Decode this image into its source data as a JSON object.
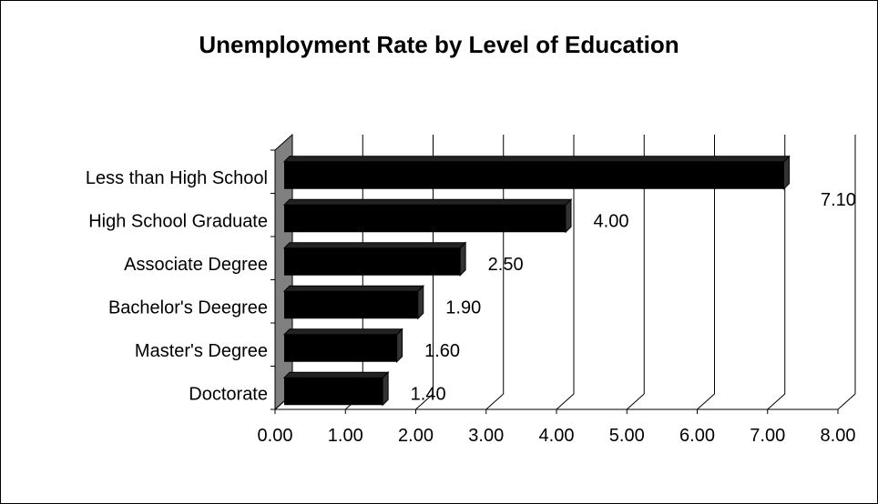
{
  "chart_data": {
    "type": "bar",
    "orientation": "horizontal",
    "title": "Unemployment Rate by Level of Education",
    "xlabel": "",
    "ylabel": "",
    "categories": [
      "Less than High School",
      "High School Graduate",
      "Associate Degree",
      "Bachelor's Deegree",
      "Master's Degree",
      "Doctorate"
    ],
    "values": [
      7.1,
      4.0,
      2.5,
      1.9,
      1.6,
      1.4
    ],
    "data_labels": [
      "7.10",
      "4.00",
      "2.50",
      "1.90",
      "1.60",
      "1.40"
    ],
    "xlim": [
      0,
      8
    ],
    "x_ticks": [
      "0.00",
      "1.00",
      "2.00",
      "3.00",
      "4.00",
      "5.00",
      "6.00",
      "7.00",
      "8.00"
    ],
    "grid": "vertical",
    "legend": "none",
    "style_3d": true,
    "bar_color": "#000000",
    "wall_color": "#808080"
  }
}
